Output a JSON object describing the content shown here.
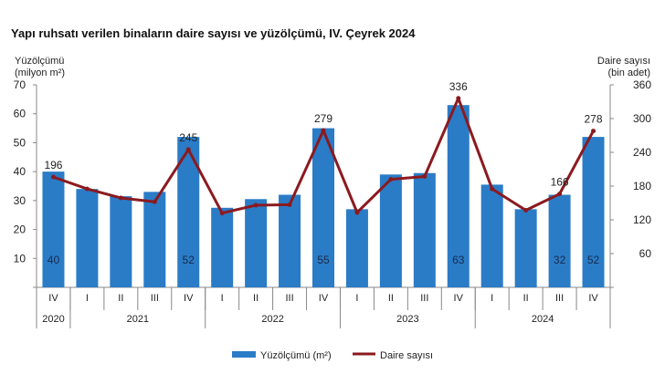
{
  "chart_data": {
    "type": "bar+line",
    "title": "Yapı ruhsatı verilen binaların daire sayısı ve yüzölçümü, IV. Çeyrek 2024",
    "ylabel_left": [
      "Yüzölçümü",
      "(milyon m²)"
    ],
    "ylabel_right": [
      "Daire sayısı",
      "(bin adet)"
    ],
    "ylim_left": [
      0,
      70
    ],
    "yticks_left": [
      10,
      20,
      30,
      40,
      50,
      60,
      70
    ],
    "ylim_right": [
      0,
      360
    ],
    "yticks_right": [
      60,
      120,
      180,
      240,
      300,
      360
    ],
    "categories": [
      "IV",
      "I",
      "II",
      "III",
      "IV",
      "I",
      "II",
      "III",
      "IV",
      "I",
      "II",
      "III",
      "IV",
      "I",
      "II",
      "III",
      "IV"
    ],
    "years": [
      {
        "label": "2020",
        "span": 1
      },
      {
        "label": "2021",
        "span": 4
      },
      {
        "label": "2022",
        "span": 4
      },
      {
        "label": "2023",
        "span": 4
      },
      {
        "label": "2024",
        "span": 4
      }
    ],
    "series": [
      {
        "name": "Yüzölçümü (m²)",
        "type": "bar",
        "axis": "left",
        "color": "#2a7cc7",
        "values": [
          40,
          34,
          31.5,
          33,
          52,
          27.5,
          30.5,
          32,
          55,
          27,
          39,
          39.5,
          63,
          35.5,
          27,
          32,
          52
        ],
        "labels": [
          "40",
          null,
          null,
          null,
          "52",
          null,
          null,
          null,
          "55",
          null,
          null,
          null,
          "63",
          null,
          null,
          "32",
          "52"
        ]
      },
      {
        "name": "Daire sayısı",
        "type": "line",
        "axis": "right",
        "color": "#8b1a1f",
        "values": [
          196,
          175,
          159,
          152,
          245,
          132,
          146,
          147,
          279,
          133,
          192,
          197,
          336,
          175,
          137,
          166,
          278
        ],
        "labels": [
          "196",
          null,
          null,
          null,
          "245",
          null,
          null,
          null,
          "279",
          null,
          null,
          null,
          "336",
          null,
          null,
          "166",
          "278"
        ]
      }
    ],
    "legend": "bottom",
    "grid": false
  }
}
